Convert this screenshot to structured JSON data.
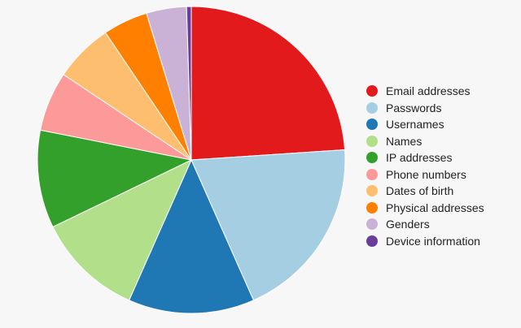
{
  "chart_data": {
    "type": "pie",
    "title": "",
    "series": [
      {
        "labels": [
          "Email addresses",
          "Passwords",
          "Usernames",
          "Names",
          "IP addresses",
          "Phone numbers",
          "Dates of birth",
          "Physical addresses",
          "Genders",
          "Device information"
        ],
        "values": [
          24.4,
          19.8,
          13.5,
          11.4,
          10.5,
          6.4,
          6.3,
          4.8,
          4.3,
          0.5
        ],
        "colors": [
          "#e31a1c",
          "#a6cee3",
          "#1f78b4",
          "#b2df8a",
          "#33a02c",
          "#fb9a99",
          "#fdbf6f",
          "#ff7f00",
          "#cab2d6",
          "#6a3d9a"
        ]
      }
    ],
    "legend": "right",
    "start_angle": "12 o'clock",
    "direction": "clockwise"
  }
}
